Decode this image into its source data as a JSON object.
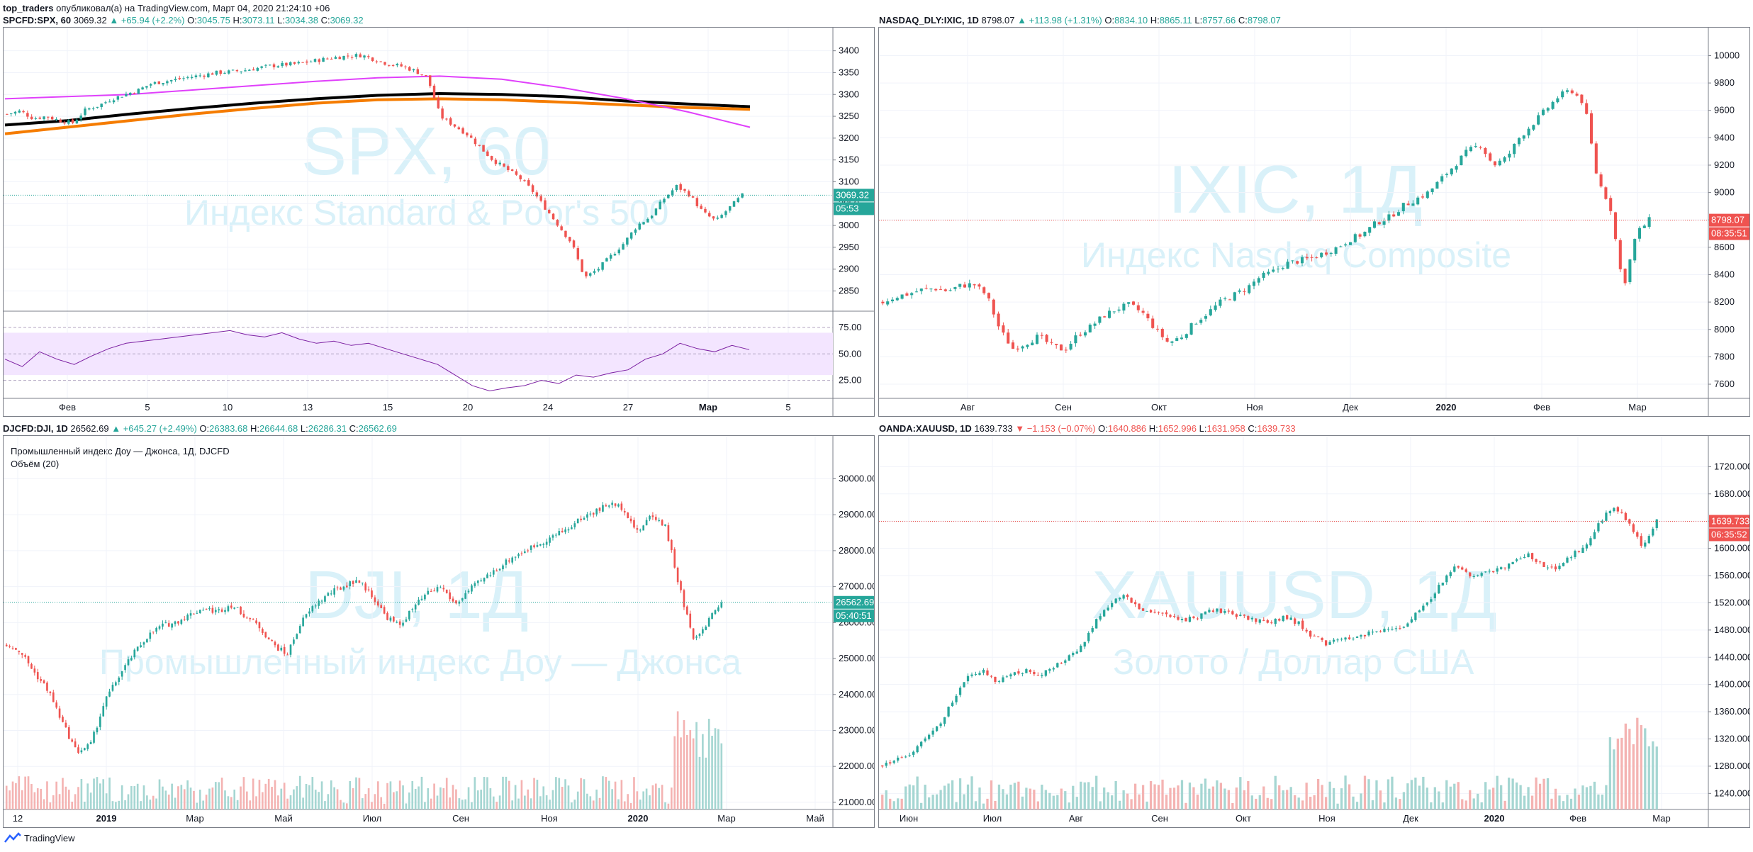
{
  "header": {
    "author": "top_traders",
    "text": "опубликовал(а) на TradingView.com, Март 04, 2020 21:24:10 +06"
  },
  "colors": {
    "up": "#26a69a",
    "down": "#ef5350",
    "watermark": "#d9f1f9",
    "grid": "#f0f3fa"
  },
  "panels": [
    {
      "symbol": "SPCFD:SPX, 60",
      "last": "3069.32",
      "change": "▲ +65.94 (+2.2%)",
      "change_dir": "up",
      "o": "3045.75",
      "h": "3073.11",
      "l": "3034.38",
      "c": "3069.32",
      "watermark_big": "SPX, 60",
      "watermark_small": "Индекс Standard & Poor's 500",
      "price_tag": "3069.32",
      "timer_tag": "05:53"
    },
    {
      "symbol": "NASDAQ_DLY:IXIC, 1D",
      "last": "8798.07",
      "change": "▲ +113.98 (+1.31%)",
      "change_dir": "up",
      "o": "8834.10",
      "h": "8865.11",
      "l": "8757.66",
      "c": "8798.07",
      "watermark_big": "IXIC, 1Д",
      "watermark_small": "Индекс Nasdaq Composite",
      "price_tag": "8798.07",
      "timer_tag": "08:35:51"
    },
    {
      "symbol": "DJCFD:DJI, 1D",
      "last": "26562.69",
      "change": "▲ +645.27 (+2.49%)",
      "change_dir": "up",
      "o": "26383.68",
      "h": "26644.68",
      "l": "26286.31",
      "c": "26562.69",
      "watermark_big": "DJI, 1Д",
      "watermark_small": "Промышленный индекс Доу — Джонса",
      "price_tag": "26562.69",
      "timer_tag": "05:40:51",
      "study_title": "Промышленный индекс Доу — Джонса, 1Д, DJCFD",
      "study_volume": "Объём (20)"
    },
    {
      "symbol": "OANDA:XAUUSD, 1D",
      "last": "1639.733",
      "change": "▼ −1.153 (−0.07%)",
      "change_dir": "down",
      "o": "1640.886",
      "h": "1652.996",
      "l": "1631.958",
      "c": "1639.733",
      "watermark_big": "XAUUSD, 1Д",
      "watermark_small": "Золото / Доллар США",
      "price_tag": "1639.733",
      "timer_tag": "06:35:52"
    }
  ],
  "footer": {
    "brand": "TradingView"
  },
  "chart_data": [
    {
      "type": "candlestick",
      "symbol": "SPCFD:SPX, 60",
      "y_ticks": [
        3400,
        3350,
        3300,
        3250,
        3200,
        3150,
        3100,
        3050,
        3000,
        2950,
        2900,
        2850
      ],
      "ylim": [
        2820,
        3440
      ],
      "x_ticks": [
        "Фев",
        "5",
        "10",
        "13",
        "15",
        "20",
        "24",
        "27",
        "Мар",
        "5"
      ],
      "close_path": [
        3255,
        3262,
        3245,
        3250,
        3240,
        3235,
        3265,
        3275,
        3290,
        3300,
        3310,
        3325,
        3330,
        3335,
        3340,
        3345,
        3350,
        3352,
        3355,
        3360,
        3365,
        3368,
        3370,
        3375,
        3380,
        3385,
        3388,
        3390,
        3380,
        3370,
        3365,
        3355,
        3340,
        3250,
        3230,
        3210,
        3180,
        3150,
        3130,
        3110,
        3080,
        3040,
        3000,
        2960,
        2880,
        2900,
        2930,
        2960,
        3000,
        3020,
        3060,
        3090,
        3070,
        3030,
        3010,
        3040,
        3069
      ],
      "ma_lines": [
        {
          "color": "#000000",
          "values": [
            3230,
            3240,
            3255,
            3268,
            3280,
            3290,
            3298,
            3302,
            3300,
            3295,
            3285,
            3278,
            3272
          ]
        },
        {
          "color": "#f57c00",
          "values": [
            3210,
            3225,
            3240,
            3255,
            3268,
            3280,
            3288,
            3290,
            3288,
            3282,
            3276,
            3270,
            3266
          ]
        },
        {
          "color": "#e040fb",
          "values": [
            3290,
            3295,
            3300,
            3310,
            3320,
            3330,
            3338,
            3342,
            3335,
            3315,
            3290,
            3260,
            3225
          ]
        }
      ],
      "rsi": {
        "y_ticks": [
          75.0,
          50.0,
          25.0
        ],
        "ylim": [
          10,
          85
        ],
        "band": [
          70,
          30
        ],
        "values": [
          45,
          38,
          52,
          45,
          40,
          48,
          55,
          60,
          62,
          64,
          66,
          68,
          70,
          72,
          68,
          66,
          70,
          64,
          60,
          62,
          58,
          60,
          55,
          50,
          45,
          40,
          30,
          20,
          15,
          18,
          20,
          25,
          22,
          30,
          28,
          32,
          35,
          45,
          50,
          60,
          55,
          52,
          58,
          54
        ]
      }
    },
    {
      "type": "candlestick",
      "symbol": "NASDAQ_DLY:IXIC, 1D",
      "y_ticks": [
        10000,
        9800,
        9600,
        9400,
        9200,
        9000,
        8800,
        8600,
        8400,
        8200,
        8000,
        7800,
        7600
      ],
      "ylim": [
        7450,
        10080
      ],
      "x_ticks": [
        "Авг",
        "Сен",
        "Окт",
        "Ноя",
        "Дек",
        "2020",
        "Фев",
        "Мар"
      ],
      "close_path": [
        8200,
        8240,
        8260,
        8290,
        8300,
        8280,
        8320,
        8330,
        8250,
        8000,
        7860,
        7900,
        7950,
        7880,
        7850,
        7960,
        8020,
        8100,
        8150,
        8180,
        8120,
        8000,
        7900,
        7950,
        8050,
        8120,
        8200,
        8250,
        8300,
        8380,
        8420,
        8480,
        8500,
        8520,
        8560,
        8600,
        8660,
        8700,
        8780,
        8820,
        8900,
        8950,
        9000,
        9100,
        9200,
        9300,
        9350,
        9200,
        9250,
        9400,
        9500,
        9600,
        9700,
        9750,
        9650,
        9100,
        8900,
        8300,
        8700,
        8798
      ]
    },
    {
      "type": "candlestick",
      "symbol": "DJCFD:DJI, 1D",
      "y_ticks": [
        30000,
        29000,
        28000,
        27000,
        26000,
        25000,
        24000,
        23000,
        22000,
        21000
      ],
      "ylim": [
        20900,
        30600
      ],
      "x_ticks": [
        "12",
        "2019",
        "Мар",
        "Май",
        "Июл",
        "Сен",
        "Ноя",
        "2020",
        "Мар",
        "Май"
      ],
      "close_path": [
        25400,
        25200,
        24600,
        24100,
        23200,
        22400,
        22600,
        23800,
        24500,
        25100,
        25600,
        25900,
        26000,
        26200,
        26400,
        26300,
        26500,
        26200,
        25900,
        25400,
        25100,
        26000,
        26500,
        26800,
        27000,
        27200,
        26800,
        26200,
        25900,
        26400,
        26800,
        27000,
        26500,
        26900,
        27200,
        27500,
        27800,
        28000,
        28200,
        28400,
        28600,
        28900,
        29100,
        29300,
        29200,
        28500,
        29000,
        28700,
        27000,
        25500,
        26000,
        26562
      ],
      "volume_ylim": [
        0,
        1
      ]
    },
    {
      "type": "candlestick",
      "symbol": "OANDA:XAUUSD, 1D",
      "y_ticks": [
        1720.0,
        1680.0,
        1640.0,
        1600.0,
        1560.0,
        1520.0,
        1480.0,
        1440.0,
        1400.0,
        1360.0,
        1320.0,
        1280.0,
        1240.0
      ],
      "ylim": [
        1232,
        1736
      ],
      "x_ticks": [
        "Июн",
        "Июл",
        "Авг",
        "Сен",
        "Окт",
        "Ноя",
        "Дек",
        "2020",
        "Фев",
        "Мар"
      ],
      "close_path": [
        1282,
        1290,
        1300,
        1320,
        1340,
        1380,
        1410,
        1420,
        1405,
        1415,
        1420,
        1415,
        1425,
        1440,
        1460,
        1500,
        1520,
        1530,
        1510,
        1505,
        1500,
        1495,
        1500,
        1510,
        1505,
        1500,
        1495,
        1490,
        1500,
        1490,
        1470,
        1460,
        1465,
        1470,
        1475,
        1480,
        1480,
        1500,
        1520,
        1550,
        1575,
        1560,
        1565,
        1570,
        1580,
        1590,
        1575,
        1570,
        1590,
        1600,
        1640,
        1660,
        1640,
        1600,
        1640
      ]
    }
  ]
}
